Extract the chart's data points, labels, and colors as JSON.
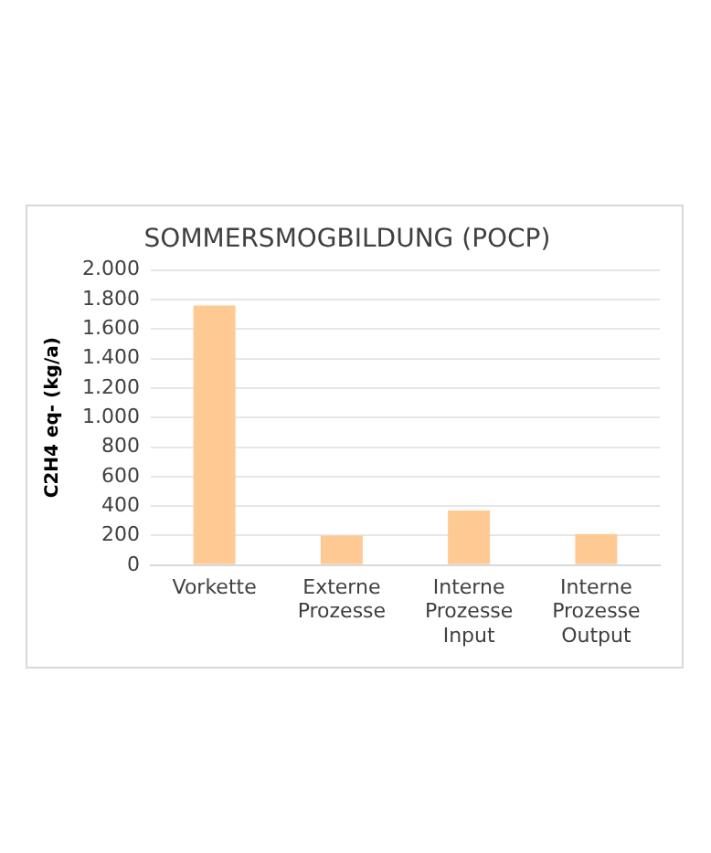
{
  "chart_data": {
    "type": "bar",
    "title": "SOMMERSMOGBILDUNG (POCP)",
    "ylabel": "C2H4 eq- (kg/a)",
    "categories": [
      "Vorkette",
      "Externe Prozesse",
      "Interne Prozesse Input",
      "Interne Prozesse Output"
    ],
    "values": [
      1760,
      200,
      370,
      210
    ],
    "color": "#ffc994",
    "ylim": [
      0,
      2000
    ],
    "yticks": [
      0,
      200,
      400,
      600,
      800,
      {
        "value": 1000,
        "label": "1.000"
      },
      {
        "value": 1200,
        "label": "1.200"
      },
      {
        "value": 1400,
        "label": "1.400"
      },
      {
        "value": 1600,
        "label": "1.600"
      },
      {
        "value": 1800,
        "label": "1.800"
      },
      {
        "value": 2000,
        "label": "2.000"
      }
    ],
    "grid": "y",
    "legend": false
  }
}
